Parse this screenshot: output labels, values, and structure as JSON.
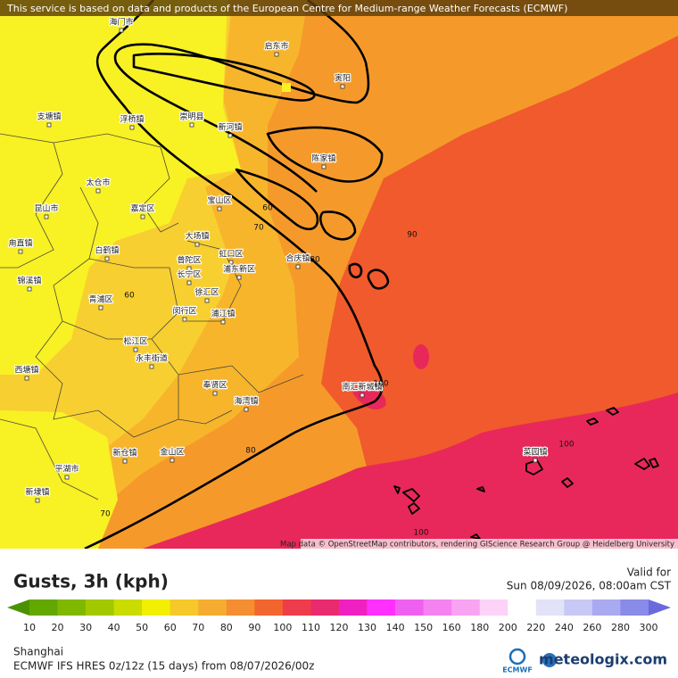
{
  "banner": "This service is based on data and products of the European Centre for Medium-range Weather Forecasts (ECMWF)",
  "map": {
    "places": [
      "海门市",
      "启东市",
      "寅阳",
      "崇明县",
      "新河镇",
      "浮桥镇",
      "支塘镇",
      "陈家镇",
      "太仓市",
      "宝山区",
      "昆山市",
      "嘉定区",
      "大场镇",
      "虹口区",
      "白鹤镇",
      "甪直镇",
      "普陀区",
      "浦东新区",
      "长宁区",
      "合庆镇",
      "锦溪镇",
      "青浦区",
      "徐汇区",
      "闵行区",
      "浦江镇",
      "松江区",
      "永丰街道",
      "西塘镇",
      "奉贤区",
      "南汇新城镇",
      "海湾镇",
      "新仓镇",
      "金山区",
      "平湖市",
      "新埭镇",
      "菜园镇"
    ],
    "contour_labels": [
      60,
      70,
      80,
      60,
      90,
      100,
      100,
      80,
      70,
      100
    ],
    "attribution": "Map data © OpenStreetMap contributors, rendering GIScience Research Group @ Heidelberg University"
  },
  "legend": {
    "title": "Gusts, 3h (kph)",
    "valid_label": "Valid for",
    "valid_time": "Sun 08/09/2026, 08:00am CST",
    "scale_labels": [
      10,
      20,
      30,
      40,
      50,
      60,
      70,
      80,
      90,
      100,
      110,
      120,
      130,
      140,
      150,
      160,
      180,
      200,
      220,
      240,
      260,
      280,
      300
    ],
    "scale_colors": [
      "#4a9200",
      "#62a800",
      "#80b800",
      "#a2c800",
      "#cadc00",
      "#f2f000",
      "#f6c82a",
      "#f5ac30",
      "#f58e30",
      "#f2652e",
      "#ee3c4a",
      "#ea2a6e",
      "#f020c0",
      "#ff30ff",
      "#f060f0",
      "#f482f0",
      "#f8a4f2",
      "#fcd2f8",
      "#ffffff",
      "#e2e2f8",
      "#c8c8f4",
      "#aaaaf0",
      "#8a8ae8",
      "#6a6ae0"
    ]
  },
  "footer": {
    "location": "Shanghai",
    "model": "ECMWF IFS HRES 0z/12z (15 days) from 08/07/2026/00z",
    "ecmwf_logo": "ECMWF",
    "brand": "meteologix.com"
  }
}
